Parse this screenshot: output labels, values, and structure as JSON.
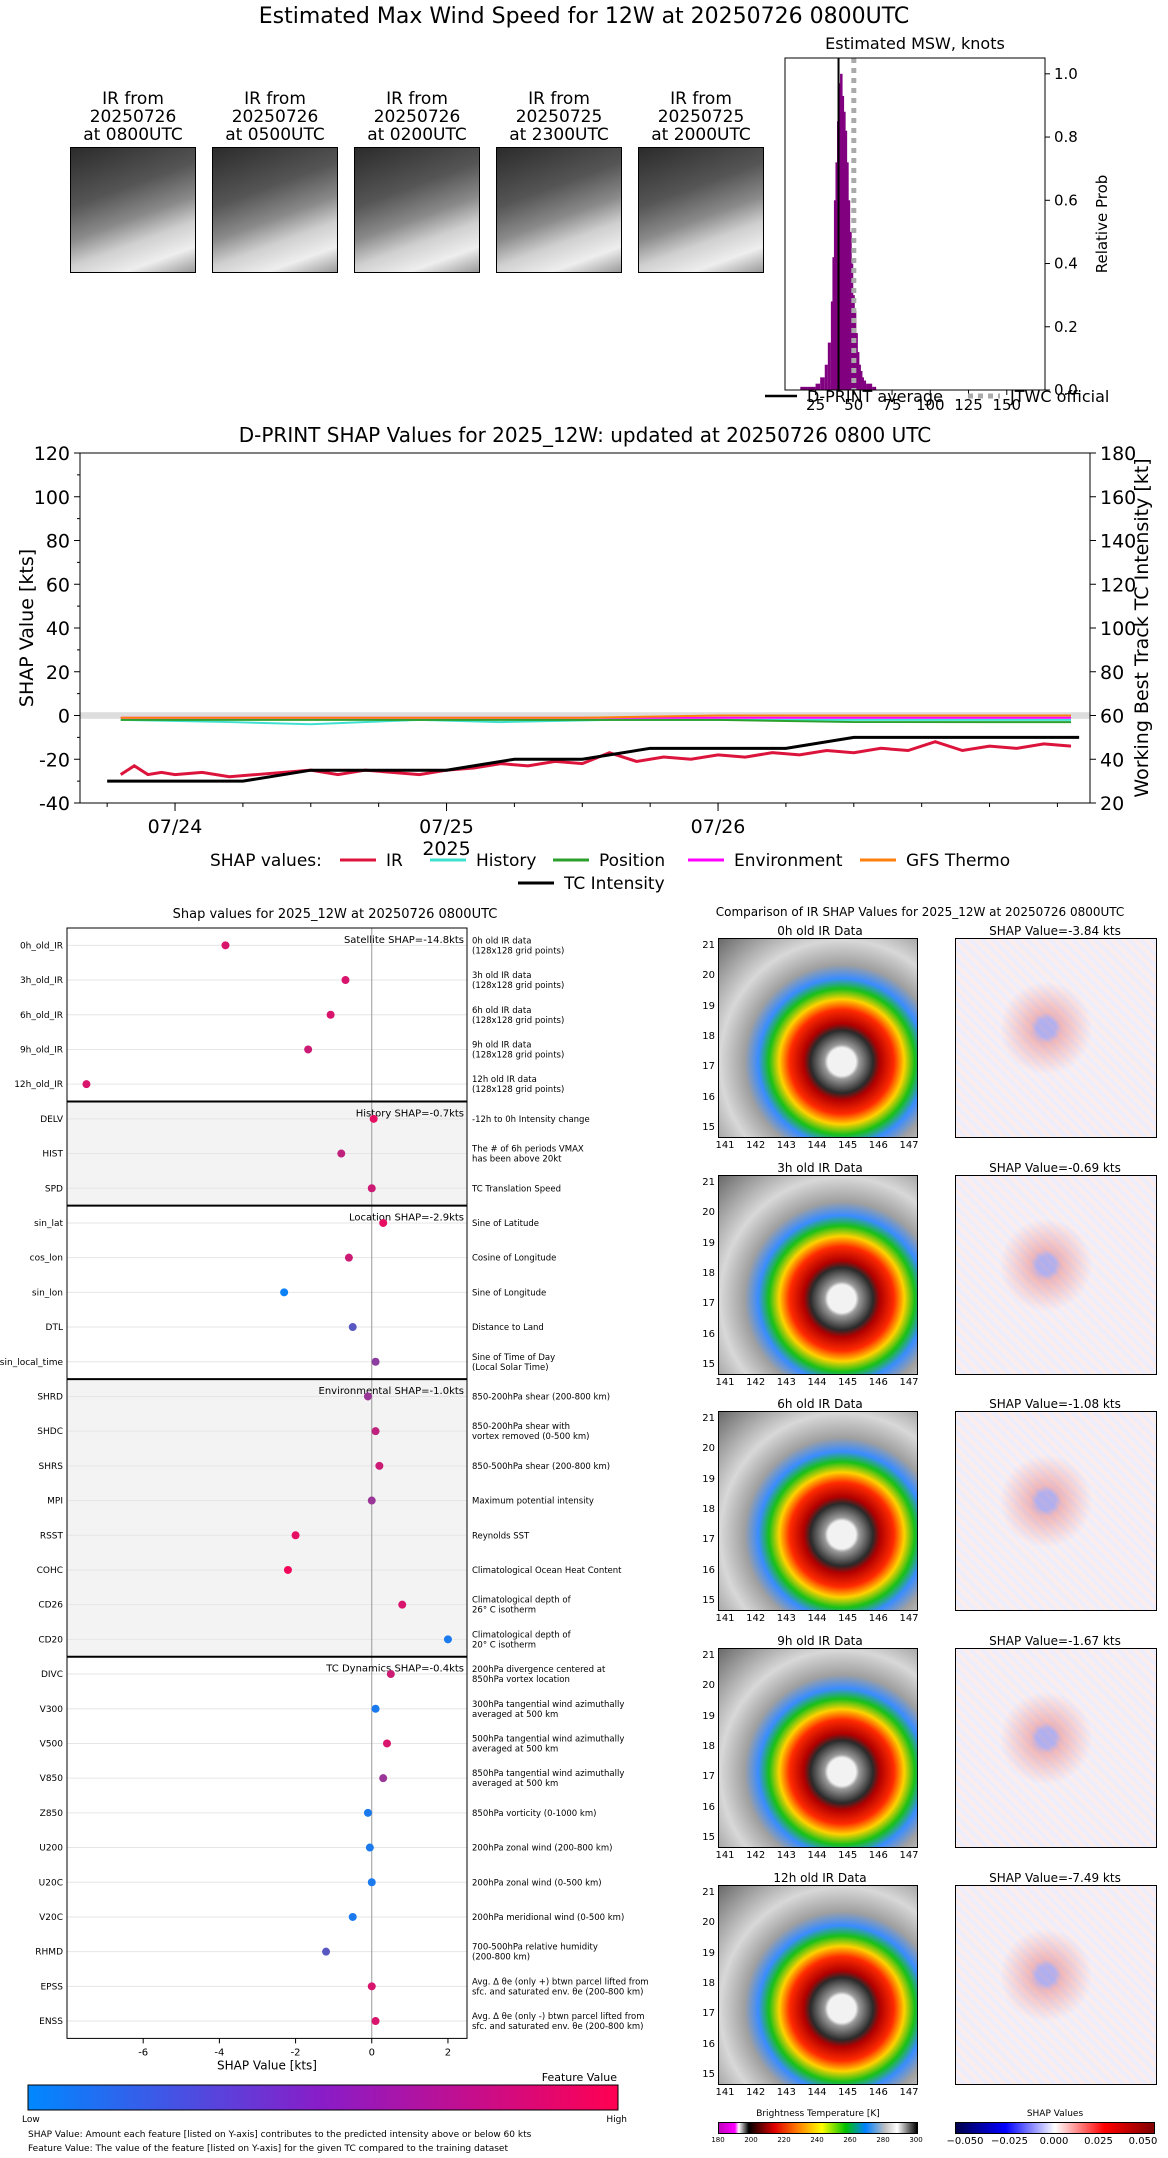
{
  "main_title": "Estimated Max Wind Speed for 12W at 20250726 0800UTC",
  "thumbnails": [
    {
      "line1": "IR from",
      "line2": "20250726",
      "line3": "at 0800UTC"
    },
    {
      "line1": "IR from",
      "line2": "20250726",
      "line3": "at 0500UTC"
    },
    {
      "line1": "IR from",
      "line2": "20250726",
      "line3": "at 0200UTC"
    },
    {
      "line1": "IR from",
      "line2": "20250725",
      "line3": "at 2300UTC"
    },
    {
      "line1": "IR from",
      "line2": "20250725",
      "line3": "at 2000UTC"
    }
  ],
  "hist": {
    "title": "Estimated MSW, knots",
    "ylabel": "Relative Prob",
    "xticks": [
      "25",
      "50",
      "75",
      "100",
      "125",
      "150"
    ],
    "yticks": [
      "0.0",
      "0.2",
      "0.4",
      "0.6",
      "0.8",
      "1.0"
    ],
    "legend_avg": "D-PRINT average",
    "legend_official": "JTWC official",
    "bar_color": "#800080"
  },
  "timeseries": {
    "title": "D-PRINT SHAP Values for 2025_12W: updated at 20250726 0800 UTC",
    "ylabel_left": "SHAP Value [kts]",
    "ylabel_right": "Working Best Track TC Intensity [kt]",
    "xlabel": "2025",
    "xticks": [
      "07/24",
      "07/25",
      "07/26"
    ],
    "yticks_left": [
      "-40",
      "-20",
      "0",
      "20",
      "40",
      "60",
      "80",
      "100",
      "120"
    ],
    "yticks_right": [
      "20",
      "40",
      "60",
      "80",
      "100",
      "120",
      "140",
      "160",
      "180"
    ],
    "legend_prefix": "SHAP values:",
    "legend": [
      {
        "name": "IR",
        "color": "#dc143c"
      },
      {
        "name": "History",
        "color": "#40e0d0"
      },
      {
        "name": "Position",
        "color": "#2ca02c"
      },
      {
        "name": "Environment",
        "color": "#ff00ff"
      },
      {
        "name": "GFS Thermo",
        "color": "#ff7f0e"
      },
      {
        "name": "TC Intensity",
        "color": "#000000"
      }
    ]
  },
  "shap_panel": {
    "title": "Shap values for 2025_12W at 20250726 0800UTC",
    "xlabel": "SHAP Value [kts]",
    "xticks": [
      "-6",
      "-4",
      "-2",
      "0",
      "2"
    ],
    "group_labels": [
      "Satellite SHAP=-14.8kts",
      "History SHAP=-0.7kts",
      "Location SHAP=-2.9kts",
      "Environmental SHAP=-1.0kts",
      "TC Dynamics SHAP=-0.4kts"
    ],
    "features": [
      {
        "name": "0h_old_IR",
        "desc": "0h old IR data\n(128x128 grid points)"
      },
      {
        "name": "3h_old_IR",
        "desc": "3h old IR data\n(128x128 grid points)"
      },
      {
        "name": "6h_old_IR",
        "desc": "6h old IR data\n(128x128 grid points)"
      },
      {
        "name": "9h_old_IR",
        "desc": "9h old IR data\n(128x128 grid points)"
      },
      {
        "name": "12h_old_IR",
        "desc": "12h old IR data\n(128x128 grid points)"
      },
      {
        "name": "DELV",
        "desc": "-12h to 0h Intensity change"
      },
      {
        "name": "HIST",
        "desc": "The # of 6h periods VMAX\nhas been above 20kt"
      },
      {
        "name": "SPD",
        "desc": "TC Translation Speed"
      },
      {
        "name": "sin_lat",
        "desc": "Sine of Latitude"
      },
      {
        "name": "cos_lon",
        "desc": "Cosine of Longitude"
      },
      {
        "name": "sin_lon",
        "desc": "Sine of Longitude"
      },
      {
        "name": "DTL",
        "desc": "Distance to Land"
      },
      {
        "name": "sin_local_time",
        "desc": "Sine of Time of Day\n(Local Solar Time)"
      },
      {
        "name": "SHRD",
        "desc": "850-200hPa shear (200-800 km)"
      },
      {
        "name": "SHDC",
        "desc": "850-200hPa shear with\nvortex removed (0-500 km)"
      },
      {
        "name": "SHRS",
        "desc": "850-500hPa shear (200-800 km)"
      },
      {
        "name": "MPI",
        "desc": "Maximum potential intensity"
      },
      {
        "name": "RSST",
        "desc": "Reynolds SST"
      },
      {
        "name": "COHC",
        "desc": "Climatological Ocean Heat Content"
      },
      {
        "name": "CD26",
        "desc": "Climatological depth of\n26° C isotherm"
      },
      {
        "name": "CD20",
        "desc": "Climatological depth of\n20° C isotherm"
      },
      {
        "name": "DIVC",
        "desc": "200hPa divergence centered at\n850hPa vortex location"
      },
      {
        "name": "V300",
        "desc": "300hPa tangential wind azimuthally\naveraged at 500 km"
      },
      {
        "name": "V500",
        "desc": "500hPa tangential wind azimuthally\naveraged at 500 km"
      },
      {
        "name": "V850",
        "desc": "850hPa tangential wind azimuthally\naveraged at 500 km"
      },
      {
        "name": "Z850",
        "desc": "850hPa vorticity (0-1000 km)"
      },
      {
        "name": "U200",
        "desc": "200hPa zonal wind (200-800 km)"
      },
      {
        "name": "U20C",
        "desc": "200hPa zonal wind (0-500 km)"
      },
      {
        "name": "V20C",
        "desc": "200hPa meridional wind (0-500 km)"
      },
      {
        "name": "RHMD",
        "desc": "700-500hPa relative humidity\n(200-800 km)"
      },
      {
        "name": "EPSS",
        "desc": "Avg. Δ θe (only +) btwn parcel lifted from\nsfc. and saturated env. θe (200-800 km)"
      },
      {
        "name": "ENSS",
        "desc": "Avg. Δ θe (only -) btwn parcel lifted from\nsfc. and saturated env. θe (200-800 km)"
      }
    ],
    "colorbar_title": "Feature Value",
    "colorbar_low": "Low",
    "colorbar_high": "High",
    "footnote1": "SHAP Value: Amount each feature [listed on Y-axis] contributes to the predicted intensity above or below 60 kts",
    "footnote2": "Feature Value: The value of the feature [listed on Y-axis] for the given TC compared to the training dataset"
  },
  "ir_panel": {
    "title": "Comparison of IR SHAP Values for 2025_12W at 20250726 0800UTC",
    "rows": [
      {
        "ir_title": "0h old IR Data",
        "shap_title": "SHAP Value=-3.84 kts"
      },
      {
        "ir_title": "3h old IR Data",
        "shap_title": "SHAP Value=-0.69 kts"
      },
      {
        "ir_title": "6h old IR Data",
        "shap_title": "SHAP Value=-1.08 kts"
      },
      {
        "ir_title": "9h old IR Data",
        "shap_title": "SHAP Value=-1.67 kts"
      },
      {
        "ir_title": "12h old IR Data",
        "shap_title": "SHAP Value=-7.49 kts"
      }
    ],
    "lon_ticks": [
      "141",
      "142",
      "143",
      "144",
      "145",
      "146",
      "147"
    ],
    "lat_ticks": [
      "15",
      "16",
      "17",
      "18",
      "19",
      "20",
      "21"
    ],
    "bt_label": "Brightness Temperature [K]",
    "bt_ticks": [
      "180",
      "200",
      "220",
      "240",
      "260",
      "280",
      "300"
    ],
    "shap_cb_label": "SHAP Values",
    "shap_cb_ticks": [
      "−0.050",
      "−0.025",
      "0.000",
      "0.025",
      "0.050"
    ]
  },
  "chart_data": [
    {
      "type": "bar",
      "title": "Estimated MSW, knots",
      "ylabel": "Relative Prob",
      "xlim": [
        5,
        175
      ],
      "ylim": [
        0,
        1.05
      ],
      "bins_x": [
        15,
        20,
        25,
        28,
        31,
        33,
        35,
        36,
        37,
        38,
        39,
        40,
        41,
        42,
        43,
        44,
        45,
        46,
        47,
        48,
        49,
        50,
        51,
        52,
        53,
        54,
        55,
        56,
        58,
        62
      ],
      "values": [
        0.01,
        0.01,
        0.02,
        0.04,
        0.08,
        0.15,
        0.28,
        0.42,
        0.6,
        0.72,
        0.85,
        0.97,
        1.0,
        0.93,
        0.88,
        0.82,
        0.72,
        0.6,
        0.5,
        0.4,
        0.3,
        0.25,
        0.18,
        0.12,
        0.08,
        0.06,
        0.04,
        0.03,
        0.02,
        0.01
      ],
      "dprint_average": 40,
      "jtwc_official": 50
    },
    {
      "type": "line",
      "title": "D-PRINT SHAP Values for 2025_12W: updated at 20250726 0800 UTC",
      "x_unit": "days since 07/24 00UTC",
      "ylim_left": [
        -40,
        120
      ],
      "ylim_right": [
        20,
        180
      ],
      "series": [
        {
          "name": "IR",
          "x": [
            -0.2,
            -0.15,
            -0.1,
            -0.05,
            0,
            0.1,
            0.2,
            0.3,
            0.4,
            0.5,
            0.6,
            0.7,
            0.8,
            0.9,
            1.0,
            1.1,
            1.2,
            1.3,
            1.4,
            1.5,
            1.6,
            1.7,
            1.8,
            1.9,
            2.0,
            2.1,
            2.2,
            2.3,
            2.4,
            2.5,
            2.6,
            2.7,
            2.8,
            2.9,
            3.0,
            3.1,
            3.2,
            3.3
          ],
          "values": [
            -27,
            -23,
            -27,
            -26,
            -27,
            -26,
            -28,
            -27,
            -26,
            -25,
            -27,
            -25,
            -26,
            -27,
            -25,
            -24,
            -22,
            -23,
            -21,
            -22,
            -17,
            -21,
            -19,
            -20,
            -18,
            -19,
            -17,
            -18,
            -16,
            -17,
            -15,
            -16,
            -12,
            -16,
            -14,
            -15,
            -13,
            -14
          ]
        },
        {
          "name": "History",
          "x": [
            -0.2,
            0.2,
            0.5,
            0.9,
            1.2,
            1.6,
            2.0,
            2.4,
            2.8,
            3.3
          ],
          "values": [
            -2,
            -3,
            -4,
            -2,
            -3,
            -2,
            -2,
            -2,
            -2,
            -2
          ]
        },
        {
          "name": "Position",
          "x": [
            -0.2,
            0.5,
            1.0,
            1.5,
            2.0,
            2.5,
            3.0,
            3.3
          ],
          "values": [
            -2,
            -2,
            -2,
            -2,
            -2,
            -3,
            -3,
            -3
          ]
        },
        {
          "name": "Environment",
          "x": [
            -0.2,
            0.5,
            1.0,
            1.5,
            2.0,
            2.5,
            3.0,
            3.3
          ],
          "values": [
            -1,
            -1,
            -1,
            -1,
            -1,
            -1,
            -1,
            -1
          ]
        },
        {
          "name": "GFS Thermo",
          "x": [
            -0.2,
            0.5,
            1.0,
            1.5,
            2.0,
            2.5,
            3.0,
            3.3
          ],
          "values": [
            -1,
            -1,
            -1,
            -1,
            0,
            0,
            0,
            0
          ]
        },
        {
          "name": "TC Intensity",
          "axis": "right",
          "x": [
            -0.25,
            0.25,
            0.5,
            0.75,
            1.0,
            1.25,
            1.5,
            1.75,
            2.0,
            2.25,
            2.5,
            2.75,
            3.0,
            3.33
          ],
          "values": [
            30,
            30,
            35,
            35,
            35,
            40,
            40,
            45,
            45,
            45,
            50,
            50,
            50,
            50
          ]
        }
      ]
    },
    {
      "type": "scatter",
      "title": "Shap values for 2025_12W at 20250726 0800UTC",
      "xlabel": "SHAP Value [kts]",
      "xlim": [
        -8,
        2.5
      ],
      "points": [
        {
          "feature": "0h_old_IR",
          "shap": -3.84,
          "feature_value": 0.85
        },
        {
          "feature": "3h_old_IR",
          "shap": -0.69,
          "feature_value": 0.85
        },
        {
          "feature": "6h_old_IR",
          "shap": -1.08,
          "feature_value": 0.85
        },
        {
          "feature": "9h_old_IR",
          "shap": -1.67,
          "feature_value": 0.8
        },
        {
          "feature": "12h_old_IR",
          "shap": -7.49,
          "feature_value": 0.85
        },
        {
          "feature": "DELV",
          "shap": 0.05,
          "feature_value": 0.9
        },
        {
          "feature": "HIST",
          "shap": -0.8,
          "feature_value": 0.75
        },
        {
          "feature": "SPD",
          "shap": 0.0,
          "feature_value": 0.8
        },
        {
          "feature": "sin_lat",
          "shap": 0.3,
          "feature_value": 0.9
        },
        {
          "feature": "cos_lon",
          "shap": -0.6,
          "feature_value": 0.8
        },
        {
          "feature": "sin_lon",
          "shap": -2.3,
          "feature_value": 0.05
        },
        {
          "feature": "DTL",
          "shap": -0.5,
          "feature_value": 0.35
        },
        {
          "feature": "sin_local_time",
          "shap": 0.1,
          "feature_value": 0.55
        },
        {
          "feature": "SHRD",
          "shap": -0.1,
          "feature_value": 0.6
        },
        {
          "feature": "SHDC",
          "shap": 0.1,
          "feature_value": 0.75
        },
        {
          "feature": "SHRS",
          "shap": 0.2,
          "feature_value": 0.8
        },
        {
          "feature": "MPI",
          "shap": 0.0,
          "feature_value": 0.6
        },
        {
          "feature": "RSST",
          "shap": -2.0,
          "feature_value": 0.9
        },
        {
          "feature": "COHC",
          "shap": -2.2,
          "feature_value": 0.95
        },
        {
          "feature": "CD26",
          "shap": 0.8,
          "feature_value": 0.85
        },
        {
          "feature": "CD20",
          "shap": 2.0,
          "feature_value": 0.1
        },
        {
          "feature": "DIVC",
          "shap": 0.5,
          "feature_value": 0.8
        },
        {
          "feature": "V300",
          "shap": 0.1,
          "feature_value": 0.1
        },
        {
          "feature": "V500",
          "shap": 0.4,
          "feature_value": 0.85
        },
        {
          "feature": "V850",
          "shap": 0.3,
          "feature_value": 0.6
        },
        {
          "feature": "Z850",
          "shap": -0.1,
          "feature_value": 0.1
        },
        {
          "feature": "U200",
          "shap": -0.05,
          "feature_value": 0.1
        },
        {
          "feature": "U20C",
          "shap": 0.0,
          "feature_value": 0.1
        },
        {
          "feature": "V20C",
          "shap": -0.5,
          "feature_value": 0.1
        },
        {
          "feature": "RHMD",
          "shap": -1.2,
          "feature_value": 0.35
        },
        {
          "feature": "EPSS",
          "shap": 0.0,
          "feature_value": 0.85
        },
        {
          "feature": "ENSS",
          "shap": 0.1,
          "feature_value": 0.85
        }
      ]
    }
  ]
}
